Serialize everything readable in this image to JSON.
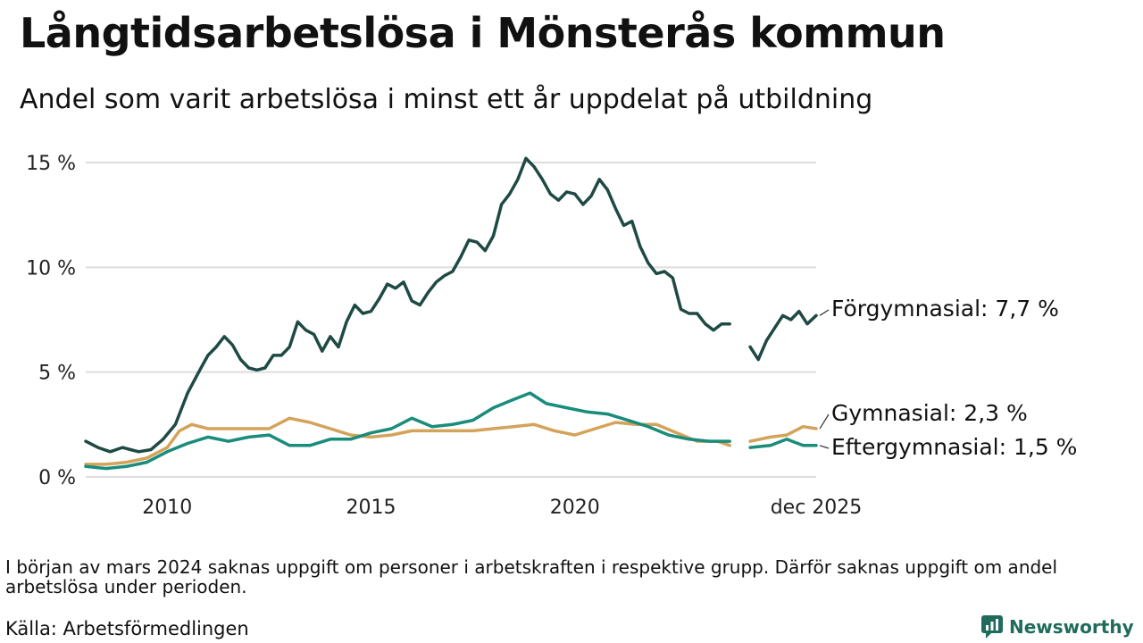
{
  "title": "Långtidsarbetslösa i Mönsterås kommun",
  "subtitle": "Andel som varit arbetslösa i minst ett år uppdelat på utbildning",
  "note": "I början av mars 2024 saknas uppgift om personer i arbetskraften i respektive grupp. Därför saknas uppgift om andel arbetslösa under perioden.",
  "source": "Källa: Arbetsförmedlingen",
  "brand": {
    "name": "Newsworthy",
    "icon": "newsworthy-logo-icon",
    "color": "#1f6b5c"
  },
  "chart_data": {
    "type": "line",
    "title": "Långtidsarbetslösa i Mönsterås kommun",
    "xlabel": "",
    "ylabel": "",
    "xlim": [
      2008.0,
      2025.92
    ],
    "ylim": [
      0,
      15
    ],
    "grid": true,
    "y_ticks": [
      {
        "value": 0,
        "label": "0 %"
      },
      {
        "value": 5,
        "label": "5 %"
      },
      {
        "value": 10,
        "label": "10 %"
      },
      {
        "value": 15,
        "label": "15 %"
      }
    ],
    "x_ticks": [
      {
        "value": 2010,
        "label": "2010"
      },
      {
        "value": 2015,
        "label": "2015"
      },
      {
        "value": 2020,
        "label": "2020"
      },
      {
        "value": 2025.92,
        "label": "dec 2025"
      }
    ],
    "missing_period": [
      2024.0,
      2024.25
    ],
    "series": [
      {
        "name": "Förgymnasial",
        "end_label": "Förgymnasial: 7,7 %",
        "color": "#1f4a44",
        "points": [
          [
            2008.0,
            1.7
          ],
          [
            2008.3,
            1.4
          ],
          [
            2008.6,
            1.2
          ],
          [
            2008.9,
            1.4
          ],
          [
            2009.1,
            1.3
          ],
          [
            2009.3,
            1.2
          ],
          [
            2009.6,
            1.3
          ],
          [
            2009.9,
            1.8
          ],
          [
            2010.2,
            2.5
          ],
          [
            2010.5,
            4.0
          ],
          [
            2010.8,
            5.1
          ],
          [
            2011.0,
            5.8
          ],
          [
            2011.2,
            6.2
          ],
          [
            2011.4,
            6.7
          ],
          [
            2011.6,
            6.3
          ],
          [
            2011.8,
            5.6
          ],
          [
            2012.0,
            5.2
          ],
          [
            2012.2,
            5.1
          ],
          [
            2012.4,
            5.2
          ],
          [
            2012.6,
            5.8
          ],
          [
            2012.8,
            5.8
          ],
          [
            2013.0,
            6.2
          ],
          [
            2013.2,
            7.4
          ],
          [
            2013.4,
            7.0
          ],
          [
            2013.6,
            6.8
          ],
          [
            2013.8,
            6.0
          ],
          [
            2014.0,
            6.7
          ],
          [
            2014.2,
            6.2
          ],
          [
            2014.4,
            7.4
          ],
          [
            2014.6,
            8.2
          ],
          [
            2014.8,
            7.8
          ],
          [
            2015.0,
            7.9
          ],
          [
            2015.2,
            8.5
          ],
          [
            2015.4,
            9.2
          ],
          [
            2015.6,
            9.0
          ],
          [
            2015.8,
            9.3
          ],
          [
            2016.0,
            8.4
          ],
          [
            2016.2,
            8.2
          ],
          [
            2016.4,
            8.8
          ],
          [
            2016.6,
            9.3
          ],
          [
            2016.8,
            9.6
          ],
          [
            2017.0,
            9.8
          ],
          [
            2017.2,
            10.5
          ],
          [
            2017.4,
            11.3
          ],
          [
            2017.6,
            11.2
          ],
          [
            2017.8,
            10.8
          ],
          [
            2018.0,
            11.5
          ],
          [
            2018.2,
            13.0
          ],
          [
            2018.4,
            13.5
          ],
          [
            2018.6,
            14.2
          ],
          [
            2018.8,
            15.2
          ],
          [
            2019.0,
            14.8
          ],
          [
            2019.2,
            14.2
          ],
          [
            2019.4,
            13.5
          ],
          [
            2019.6,
            13.2
          ],
          [
            2019.8,
            13.6
          ],
          [
            2020.0,
            13.5
          ],
          [
            2020.2,
            13.0
          ],
          [
            2020.4,
            13.4
          ],
          [
            2020.6,
            14.2
          ],
          [
            2020.8,
            13.7
          ],
          [
            2021.0,
            12.8
          ],
          [
            2021.2,
            12.0
          ],
          [
            2021.4,
            12.2
          ],
          [
            2021.6,
            11.0
          ],
          [
            2021.8,
            10.2
          ],
          [
            2022.0,
            9.7
          ],
          [
            2022.2,
            9.8
          ],
          [
            2022.4,
            9.5
          ],
          [
            2022.6,
            8.0
          ],
          [
            2022.8,
            7.8
          ],
          [
            2023.0,
            7.8
          ],
          [
            2023.2,
            7.3
          ],
          [
            2023.4,
            7.0
          ],
          [
            2023.6,
            7.3
          ],
          [
            2023.8,
            7.3
          ],
          [
            2024.3,
            6.2
          ],
          [
            2024.5,
            5.6
          ],
          [
            2024.7,
            6.5
          ],
          [
            2024.9,
            7.1
          ],
          [
            2025.1,
            7.7
          ],
          [
            2025.3,
            7.5
          ],
          [
            2025.5,
            7.9
          ],
          [
            2025.7,
            7.3
          ],
          [
            2025.92,
            7.7
          ]
        ]
      },
      {
        "name": "Gymnasial",
        "end_label": "Gymnasial: 2,3 %",
        "color": "#d4a35a",
        "points": [
          [
            2008.0,
            0.6
          ],
          [
            2008.5,
            0.6
          ],
          [
            2009.0,
            0.7
          ],
          [
            2009.5,
            0.9
          ],
          [
            2010.0,
            1.4
          ],
          [
            2010.3,
            2.2
          ],
          [
            2010.6,
            2.5
          ],
          [
            2011.0,
            2.3
          ],
          [
            2011.5,
            2.3
          ],
          [
            2012.0,
            2.3
          ],
          [
            2012.5,
            2.3
          ],
          [
            2013.0,
            2.8
          ],
          [
            2013.5,
            2.6
          ],
          [
            2014.0,
            2.3
          ],
          [
            2014.5,
            2.0
          ],
          [
            2015.0,
            1.9
          ],
          [
            2015.5,
            2.0
          ],
          [
            2016.0,
            2.2
          ],
          [
            2016.5,
            2.2
          ],
          [
            2017.0,
            2.2
          ],
          [
            2017.5,
            2.2
          ],
          [
            2018.0,
            2.3
          ],
          [
            2018.5,
            2.4
          ],
          [
            2019.0,
            2.5
          ],
          [
            2019.5,
            2.2
          ],
          [
            2020.0,
            2.0
          ],
          [
            2020.5,
            2.3
          ],
          [
            2021.0,
            2.6
          ],
          [
            2021.5,
            2.5
          ],
          [
            2022.0,
            2.5
          ],
          [
            2022.5,
            2.1
          ],
          [
            2023.0,
            1.7
          ],
          [
            2023.5,
            1.7
          ],
          [
            2023.8,
            1.5
          ],
          [
            2024.3,
            1.7
          ],
          [
            2024.8,
            1.9
          ],
          [
            2025.2,
            2.0
          ],
          [
            2025.6,
            2.4
          ],
          [
            2025.92,
            2.3
          ]
        ]
      },
      {
        "name": "Eftergymnasial",
        "end_label": "Eftergymnasial: 1,5 %",
        "color": "#1a8c7c",
        "points": [
          [
            2008.0,
            0.5
          ],
          [
            2008.5,
            0.4
          ],
          [
            2009.0,
            0.5
          ],
          [
            2009.5,
            0.7
          ],
          [
            2010.0,
            1.2
          ],
          [
            2010.5,
            1.6
          ],
          [
            2011.0,
            1.9
          ],
          [
            2011.5,
            1.7
          ],
          [
            2012.0,
            1.9
          ],
          [
            2012.5,
            2.0
          ],
          [
            2013.0,
            1.5
          ],
          [
            2013.5,
            1.5
          ],
          [
            2014.0,
            1.8
          ],
          [
            2014.5,
            1.8
          ],
          [
            2015.0,
            2.1
          ],
          [
            2015.5,
            2.3
          ],
          [
            2016.0,
            2.8
          ],
          [
            2016.5,
            2.4
          ],
          [
            2017.0,
            2.5
          ],
          [
            2017.5,
            2.7
          ],
          [
            2018.0,
            3.3
          ],
          [
            2018.5,
            3.7
          ],
          [
            2018.9,
            4.0
          ],
          [
            2019.3,
            3.5
          ],
          [
            2019.8,
            3.3
          ],
          [
            2020.3,
            3.1
          ],
          [
            2020.8,
            3.0
          ],
          [
            2021.3,
            2.7
          ],
          [
            2021.8,
            2.4
          ],
          [
            2022.3,
            2.0
          ],
          [
            2022.8,
            1.8
          ],
          [
            2023.3,
            1.7
          ],
          [
            2023.8,
            1.7
          ],
          [
            2024.3,
            1.4
          ],
          [
            2024.8,
            1.5
          ],
          [
            2025.2,
            1.8
          ],
          [
            2025.6,
            1.5
          ],
          [
            2025.92,
            1.5
          ]
        ]
      }
    ]
  }
}
